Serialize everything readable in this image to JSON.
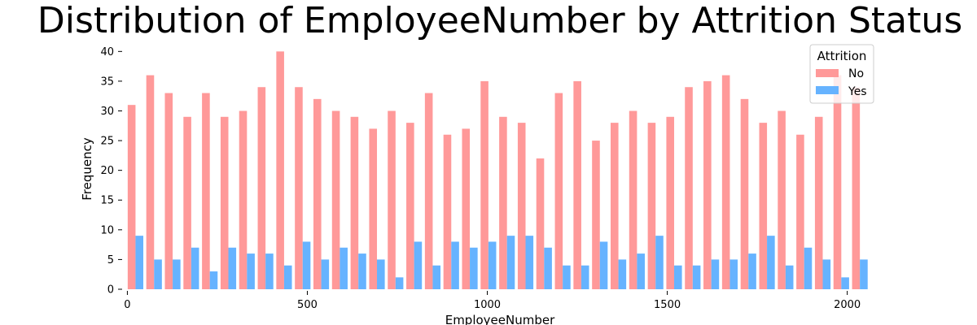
{
  "chart_data": {
    "type": "bar",
    "title": "Distribution of EmployeeNumber by Attrition Status",
    "xlabel": "EmployeeNumber",
    "ylabel": "Frequency",
    "xlim": [
      -10,
      2080
    ],
    "ylim": [
      0,
      41
    ],
    "xticks": [
      "0",
      "500",
      "1000",
      "1500",
      "2000"
    ],
    "yticks": [
      "0",
      "5",
      "10",
      "15",
      "20",
      "25",
      "30",
      "35",
      "40"
    ],
    "bin_start": 1,
    "bin_width": 51.6,
    "grid": false,
    "legend": {
      "title": "Attrition",
      "placement": "top-right"
    },
    "series": [
      {
        "name": "No",
        "color": "#ff9999",
        "values": [
          31,
          36,
          33,
          29,
          33,
          29,
          30,
          34,
          40,
          34,
          32,
          30,
          29,
          27,
          30,
          28,
          33,
          26,
          27,
          35,
          29,
          28,
          22,
          33,
          35,
          25,
          28,
          30,
          28,
          29,
          34,
          35,
          36,
          32,
          28,
          30,
          26,
          29,
          36,
          34
        ]
      },
      {
        "name": "Yes",
        "color": "#66b3ff",
        "values": [
          9,
          5,
          5,
          7,
          3,
          7,
          6,
          6,
          4,
          8,
          5,
          7,
          6,
          5,
          2,
          8,
          4,
          8,
          7,
          8,
          9,
          9,
          7,
          4,
          4,
          8,
          5,
          6,
          9,
          4,
          4,
          5,
          5,
          6,
          9,
          4,
          7,
          5,
          2,
          5
        ]
      }
    ]
  }
}
